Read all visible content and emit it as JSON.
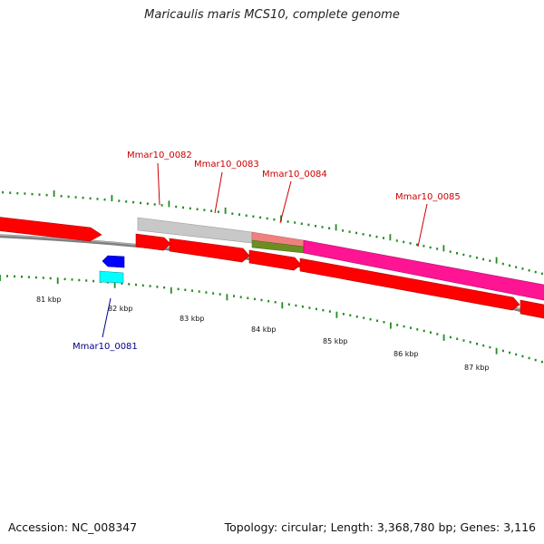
{
  "title": "Maricaulis maris MCS10, complete genome",
  "footer": {
    "accession": "Accession: NC_008347",
    "summary": "Topology: circular; Length: 3,368,780 bp; Genes: 3,116"
  },
  "ruler": {
    "labels": [
      "81 kbp",
      "82 kbp",
      "83 kbp",
      "84 kbp",
      "85 kbp",
      "86 kbp",
      "87 kbp"
    ]
  },
  "genes": [
    {
      "label": "Mmar10_0081",
      "color": "#00008b"
    },
    {
      "label": "Mmar10_0082",
      "color": "#cc0000"
    },
    {
      "label": "Mmar10_0083",
      "color": "#cc0000"
    },
    {
      "label": "Mmar10_0084",
      "color": "#cc0000"
    },
    {
      "label": "Mmar10_0085",
      "color": "#cc0000"
    }
  ],
  "colors": {
    "cds": "#ff0000",
    "cds_minus": "#0000ff",
    "rrna": "#00ffff",
    "gray_feature": "#c8c8c8",
    "pink_feature": "#ff1493",
    "salmon_feature": "#f08080",
    "olive_feature": "#6b8e23",
    "backbone": "#808080",
    "ticks": "#228b22"
  }
}
